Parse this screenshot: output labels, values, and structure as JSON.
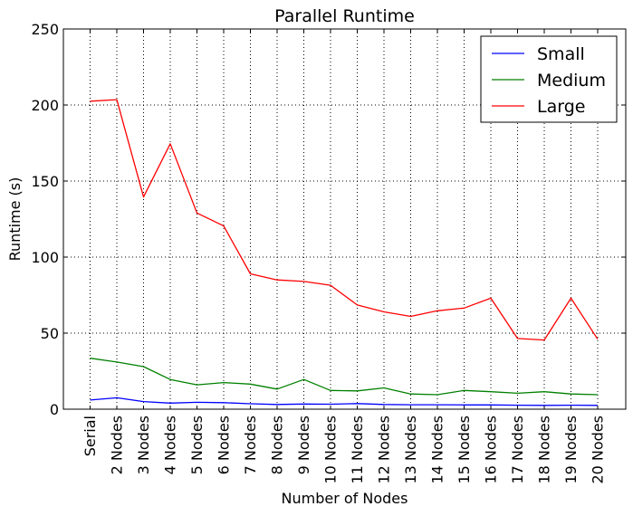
{
  "chart_data": {
    "type": "line",
    "title": "Parallel Runtime",
    "xlabel": "Number of Nodes",
    "ylabel": "Runtime (s)",
    "categories": [
      "Serial",
      "2 Nodes",
      "3 Nodes",
      "4 Nodes",
      "5 Nodes",
      "6 Nodes",
      "7 Nodes",
      "8 Nodes",
      "9 Nodes",
      "10 Nodes",
      "11 Nodes",
      "12 Nodes",
      "13 Nodes",
      "14 Nodes",
      "15 Nodes",
      "16 Nodes",
      "17 Nodes",
      "18 Nodes",
      "19 Nodes",
      "20 Nodes"
    ],
    "ylim": [
      0,
      250
    ],
    "yticks": [
      0,
      50,
      100,
      150,
      200,
      250
    ],
    "grid": true,
    "legend_position": "top-right",
    "series": [
      {
        "name": "Small",
        "color": "#0000ff",
        "values": [
          6,
          7.5,
          5,
          4,
          4.5,
          4.3,
          3.6,
          3.1,
          3.4,
          3.3,
          3.7,
          3.1,
          2.9,
          2.9,
          2.8,
          2.8,
          2.6,
          2.5,
          2.6,
          2.5
        ]
      },
      {
        "name": "Medium",
        "color": "#008000",
        "values": [
          33.5,
          31,
          28,
          19.5,
          16,
          17.5,
          16.5,
          13.2,
          19.5,
          12.3,
          12,
          14,
          10,
          9.5,
          12.3,
          11.5,
          10.5,
          11.5,
          10,
          9.5
        ]
      },
      {
        "name": "Large",
        "color": "#ff0000",
        "values": [
          202.5,
          203.5,
          139.5,
          174.5,
          129,
          120.5,
          89,
          85,
          84,
          81.5,
          68.5,
          64,
          61,
          64.7,
          66.5,
          73,
          46.5,
          45.5,
          73,
          46
        ]
      }
    ]
  }
}
